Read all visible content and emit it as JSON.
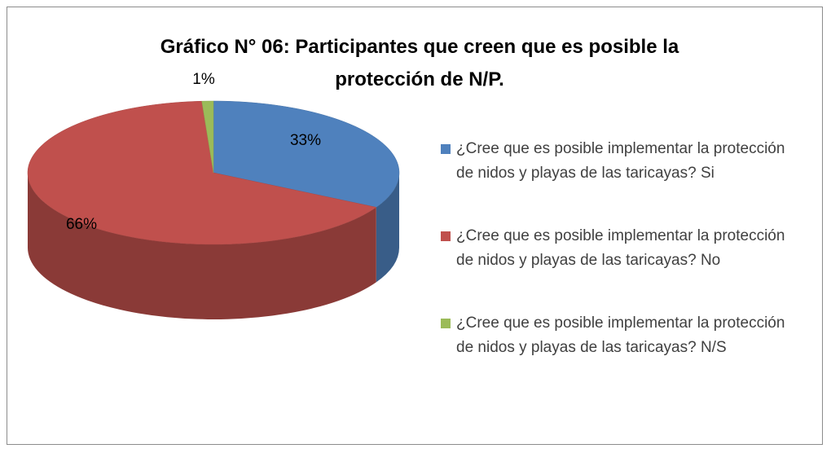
{
  "chart_data": {
    "type": "pie",
    "title": "Gráfico N° 06: Participantes que creen que es posible la protección de N/P.",
    "categories": [
      "¿Cree que es posible implementar la protección de nidos y playas de las taricayas? Si",
      "¿Cree que es posible implementar la protección de nidos y playas de las taricayas? No",
      "¿Cree que es posible implementar la protección de nidos y playas de las taricayas? N/S"
    ],
    "values": [
      33,
      66,
      1
    ],
    "value_labels": [
      "33%",
      "66%",
      "1%"
    ],
    "colors": [
      "#4f81bd",
      "#c0504d",
      "#9bbb59"
    ],
    "legend": "right"
  }
}
